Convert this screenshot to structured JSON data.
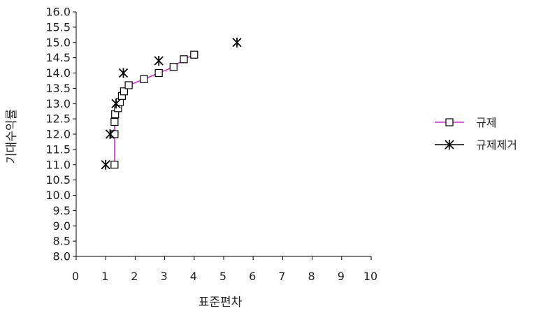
{
  "chart_data": {
    "type": "line",
    "xlabel": "표준편차",
    "ylabel": "기대수익률",
    "xlim": [
      0,
      10
    ],
    "ylim": [
      8.0,
      16.0
    ],
    "x_ticks": [
      "0",
      "1",
      "2",
      "3",
      "4",
      "5",
      "6",
      "7",
      "8",
      "9",
      "10"
    ],
    "y_ticks": [
      "8.0",
      "8.5",
      "9.0",
      "9.5",
      "10.0",
      "10.5",
      "11.0",
      "11.5",
      "12.0",
      "12.5",
      "13.0",
      "13.5",
      "14.0",
      "14.5",
      "15.0",
      "15.5",
      "16.0"
    ],
    "grid": false,
    "legend_position": "right",
    "series": [
      {
        "name": "규제",
        "marker": "square",
        "line_color": "#e020e0",
        "marker_color": "#000000",
        "line": true,
        "points": [
          {
            "x": 1.3,
            "y": 11.0
          },
          {
            "x": 1.3,
            "y": 12.0
          },
          {
            "x": 1.3,
            "y": 12.4
          },
          {
            "x": 1.32,
            "y": 12.65
          },
          {
            "x": 1.42,
            "y": 12.85
          },
          {
            "x": 1.48,
            "y": 13.05
          },
          {
            "x": 1.55,
            "y": 13.25
          },
          {
            "x": 1.62,
            "y": 13.4
          },
          {
            "x": 1.78,
            "y": 13.6
          },
          {
            "x": 2.3,
            "y": 13.8
          },
          {
            "x": 2.8,
            "y": 14.0
          },
          {
            "x": 3.3,
            "y": 14.2
          },
          {
            "x": 3.65,
            "y": 14.45
          },
          {
            "x": 4.0,
            "y": 14.6
          }
        ]
      },
      {
        "name": "규제제거",
        "marker": "asterisk",
        "line_color": "#000000",
        "marker_color": "#000000",
        "line": false,
        "points": [
          {
            "x": 1.0,
            "y": 11.0
          },
          {
            "x": 1.15,
            "y": 12.0
          },
          {
            "x": 1.35,
            "y": 13.0
          },
          {
            "x": 1.6,
            "y": 14.0
          },
          {
            "x": 2.8,
            "y": 14.4
          },
          {
            "x": 5.45,
            "y": 15.0
          }
        ]
      }
    ]
  }
}
